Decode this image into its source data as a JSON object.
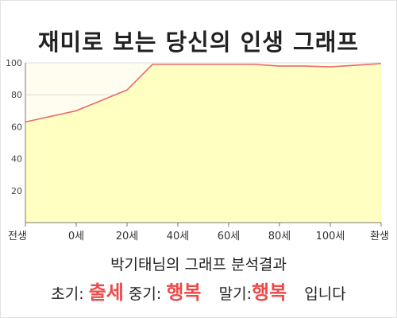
{
  "title": "재미로 보는 당신의 인생 그래프",
  "analysis_label": "박기태님의 그래프 분석결과",
  "result": {
    "early_label": "초기:",
    "early_value": "출세",
    "middle_label": "중기:",
    "middle_value": "행복",
    "late_label": "말기:",
    "late_value": "행복",
    "suffix": "입니다"
  },
  "colors": {
    "line": "#ec6a6a",
    "area": "#ffffc2",
    "plot_bg": "#fffdf0",
    "grid": "#dcdcdc",
    "accent": "#ee4a4a"
  },
  "chart_data": {
    "type": "area",
    "x_tick_labels": [
      "전생",
      "0세",
      "20세",
      "40세",
      "60세",
      "80세",
      "100세",
      "환생"
    ],
    "y_tick_labels": [
      "20",
      "40",
      "60",
      "80",
      "100"
    ],
    "ylim": [
      0,
      100
    ],
    "xlim": [
      -20,
      120
    ],
    "x": [
      -20,
      0,
      20,
      30,
      40,
      60,
      70,
      80,
      90,
      100,
      110,
      120
    ],
    "y": [
      63,
      70,
      83,
      99,
      99,
      99,
      99,
      98,
      98,
      97.5,
      98.5,
      99.5
    ]
  }
}
